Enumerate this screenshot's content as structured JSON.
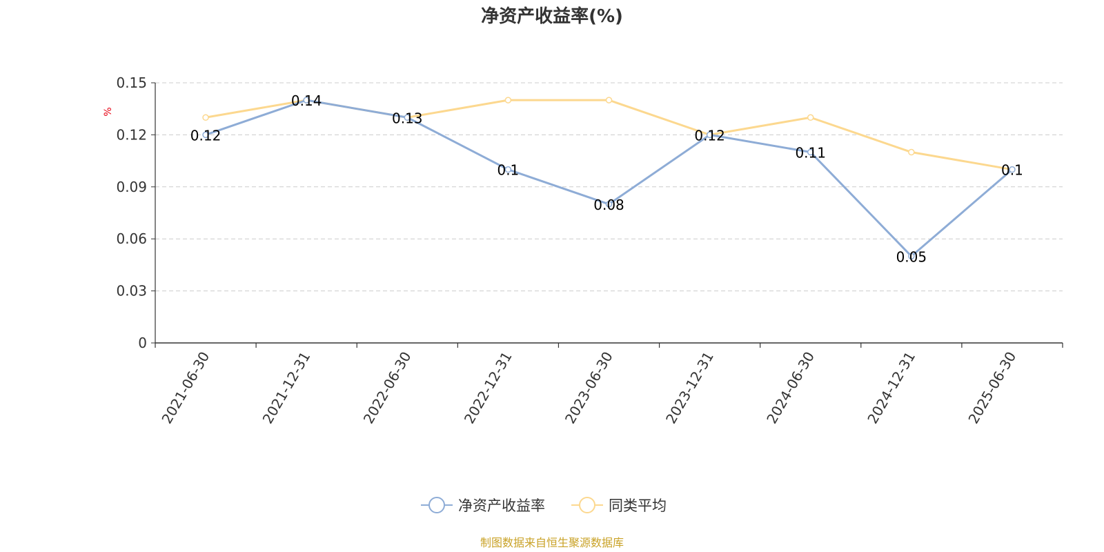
{
  "chart_data": {
    "type": "line",
    "title": "净资产收益率(%)",
    "y_unit": "%",
    "categories": [
      "2021-06-30",
      "2021-12-31",
      "2022-06-30",
      "2022-12-31",
      "2023-06-30",
      "2023-12-31",
      "2024-06-30",
      "2024-12-31",
      "2025-06-30"
    ],
    "series": [
      {
        "name": "净资产收益率",
        "color": "#8eacd6",
        "values": [
          0.12,
          0.14,
          0.13,
          0.1,
          0.08,
          0.12,
          0.11,
          0.05,
          0.1
        ],
        "labels": [
          "0.12",
          "0.14",
          "0.13",
          "0.1",
          "0.08",
          "0.12",
          "0.11",
          "0.05",
          "0.1"
        ]
      },
      {
        "name": "同类平均",
        "color": "#fcd88f",
        "values": [
          0.13,
          0.14,
          0.13,
          0.14,
          0.14,
          0.12,
          0.13,
          0.11,
          0.1
        ]
      }
    ],
    "ylim": [
      0,
      0.15
    ],
    "yticks": [
      "0",
      "0.03",
      "0.06",
      "0.09",
      "0.12",
      "0.15"
    ],
    "grid": true,
    "legend_position": "bottom"
  },
  "source": {
    "text": "制图数据来自恒生聚源数据库",
    "color": "#c9a227"
  }
}
